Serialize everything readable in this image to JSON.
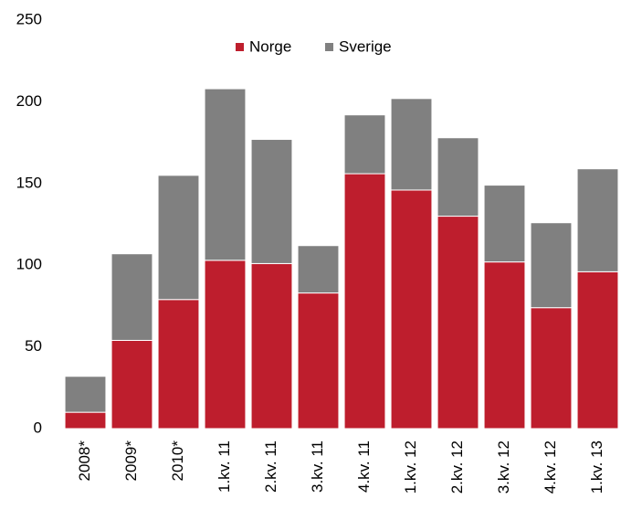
{
  "chart_data": {
    "type": "stacked_bar",
    "categories": [
      "2008*",
      "2009*",
      "2010*",
      "1.kv. 11",
      "2.kv. 11",
      "3.kv. 11",
      "4.kv. 11",
      "1.kv. 12",
      "2.kv. 12",
      "3.kv. 12",
      "4.kv. 12",
      "1.kv. 13"
    ],
    "series": [
      {
        "name": "Norge",
        "color": "#be1e2d",
        "values": [
          10,
          54,
          79,
          103,
          101,
          83,
          156,
          146,
          130,
          102,
          74,
          96
        ]
      },
      {
        "name": "Sverige",
        "color": "#808080",
        "values": [
          22,
          53,
          76,
          105,
          76,
          29,
          36,
          56,
          48,
          47,
          52,
          63
        ]
      }
    ],
    "ylim": [
      0,
      250
    ],
    "yticks": [
      0,
      50,
      100,
      150,
      200,
      250
    ],
    "grid": false,
    "legend": "top"
  }
}
